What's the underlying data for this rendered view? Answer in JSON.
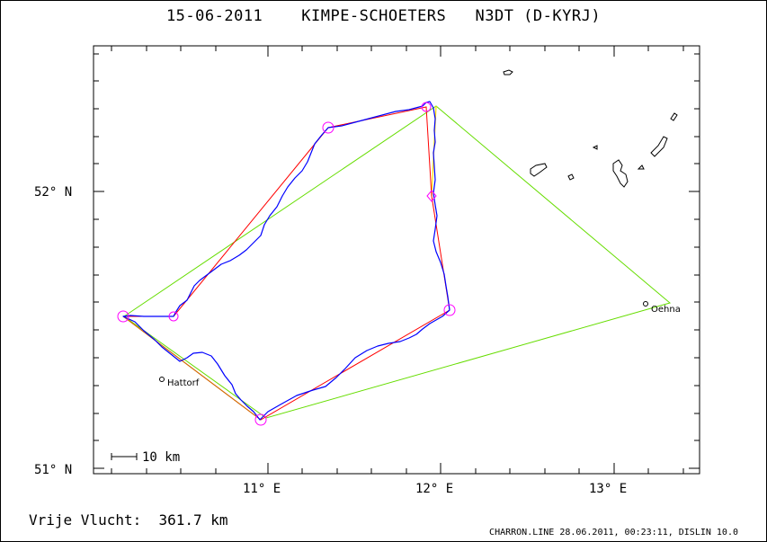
{
  "header": {
    "date": "15-06-2011",
    "pilots": "KIMPE-SCHOETERS",
    "glider": "N3DT (D-KYRJ)"
  },
  "axes": {
    "lat_labels": [
      "52° N",
      "51° N"
    ],
    "lon_labels": [
      "11° E",
      "12° E",
      "13° E"
    ]
  },
  "towns": [
    {
      "name": "Hattorf"
    },
    {
      "name": "Oehna"
    }
  ],
  "scale_bar": {
    "label": "10 km"
  },
  "summary": {
    "label": "Vrije Vlucht:",
    "distance": "361.7 km"
  },
  "footer": "CHARRON.LINE 28.06.2011, 00:23:11, DISLIN 10.0",
  "colors": {
    "track": "#0000ff",
    "task_legs": "#ff0000",
    "triangle": "#66dd00",
    "closing": "#ffdd00",
    "turnpoints": "#ff00ff"
  }
}
